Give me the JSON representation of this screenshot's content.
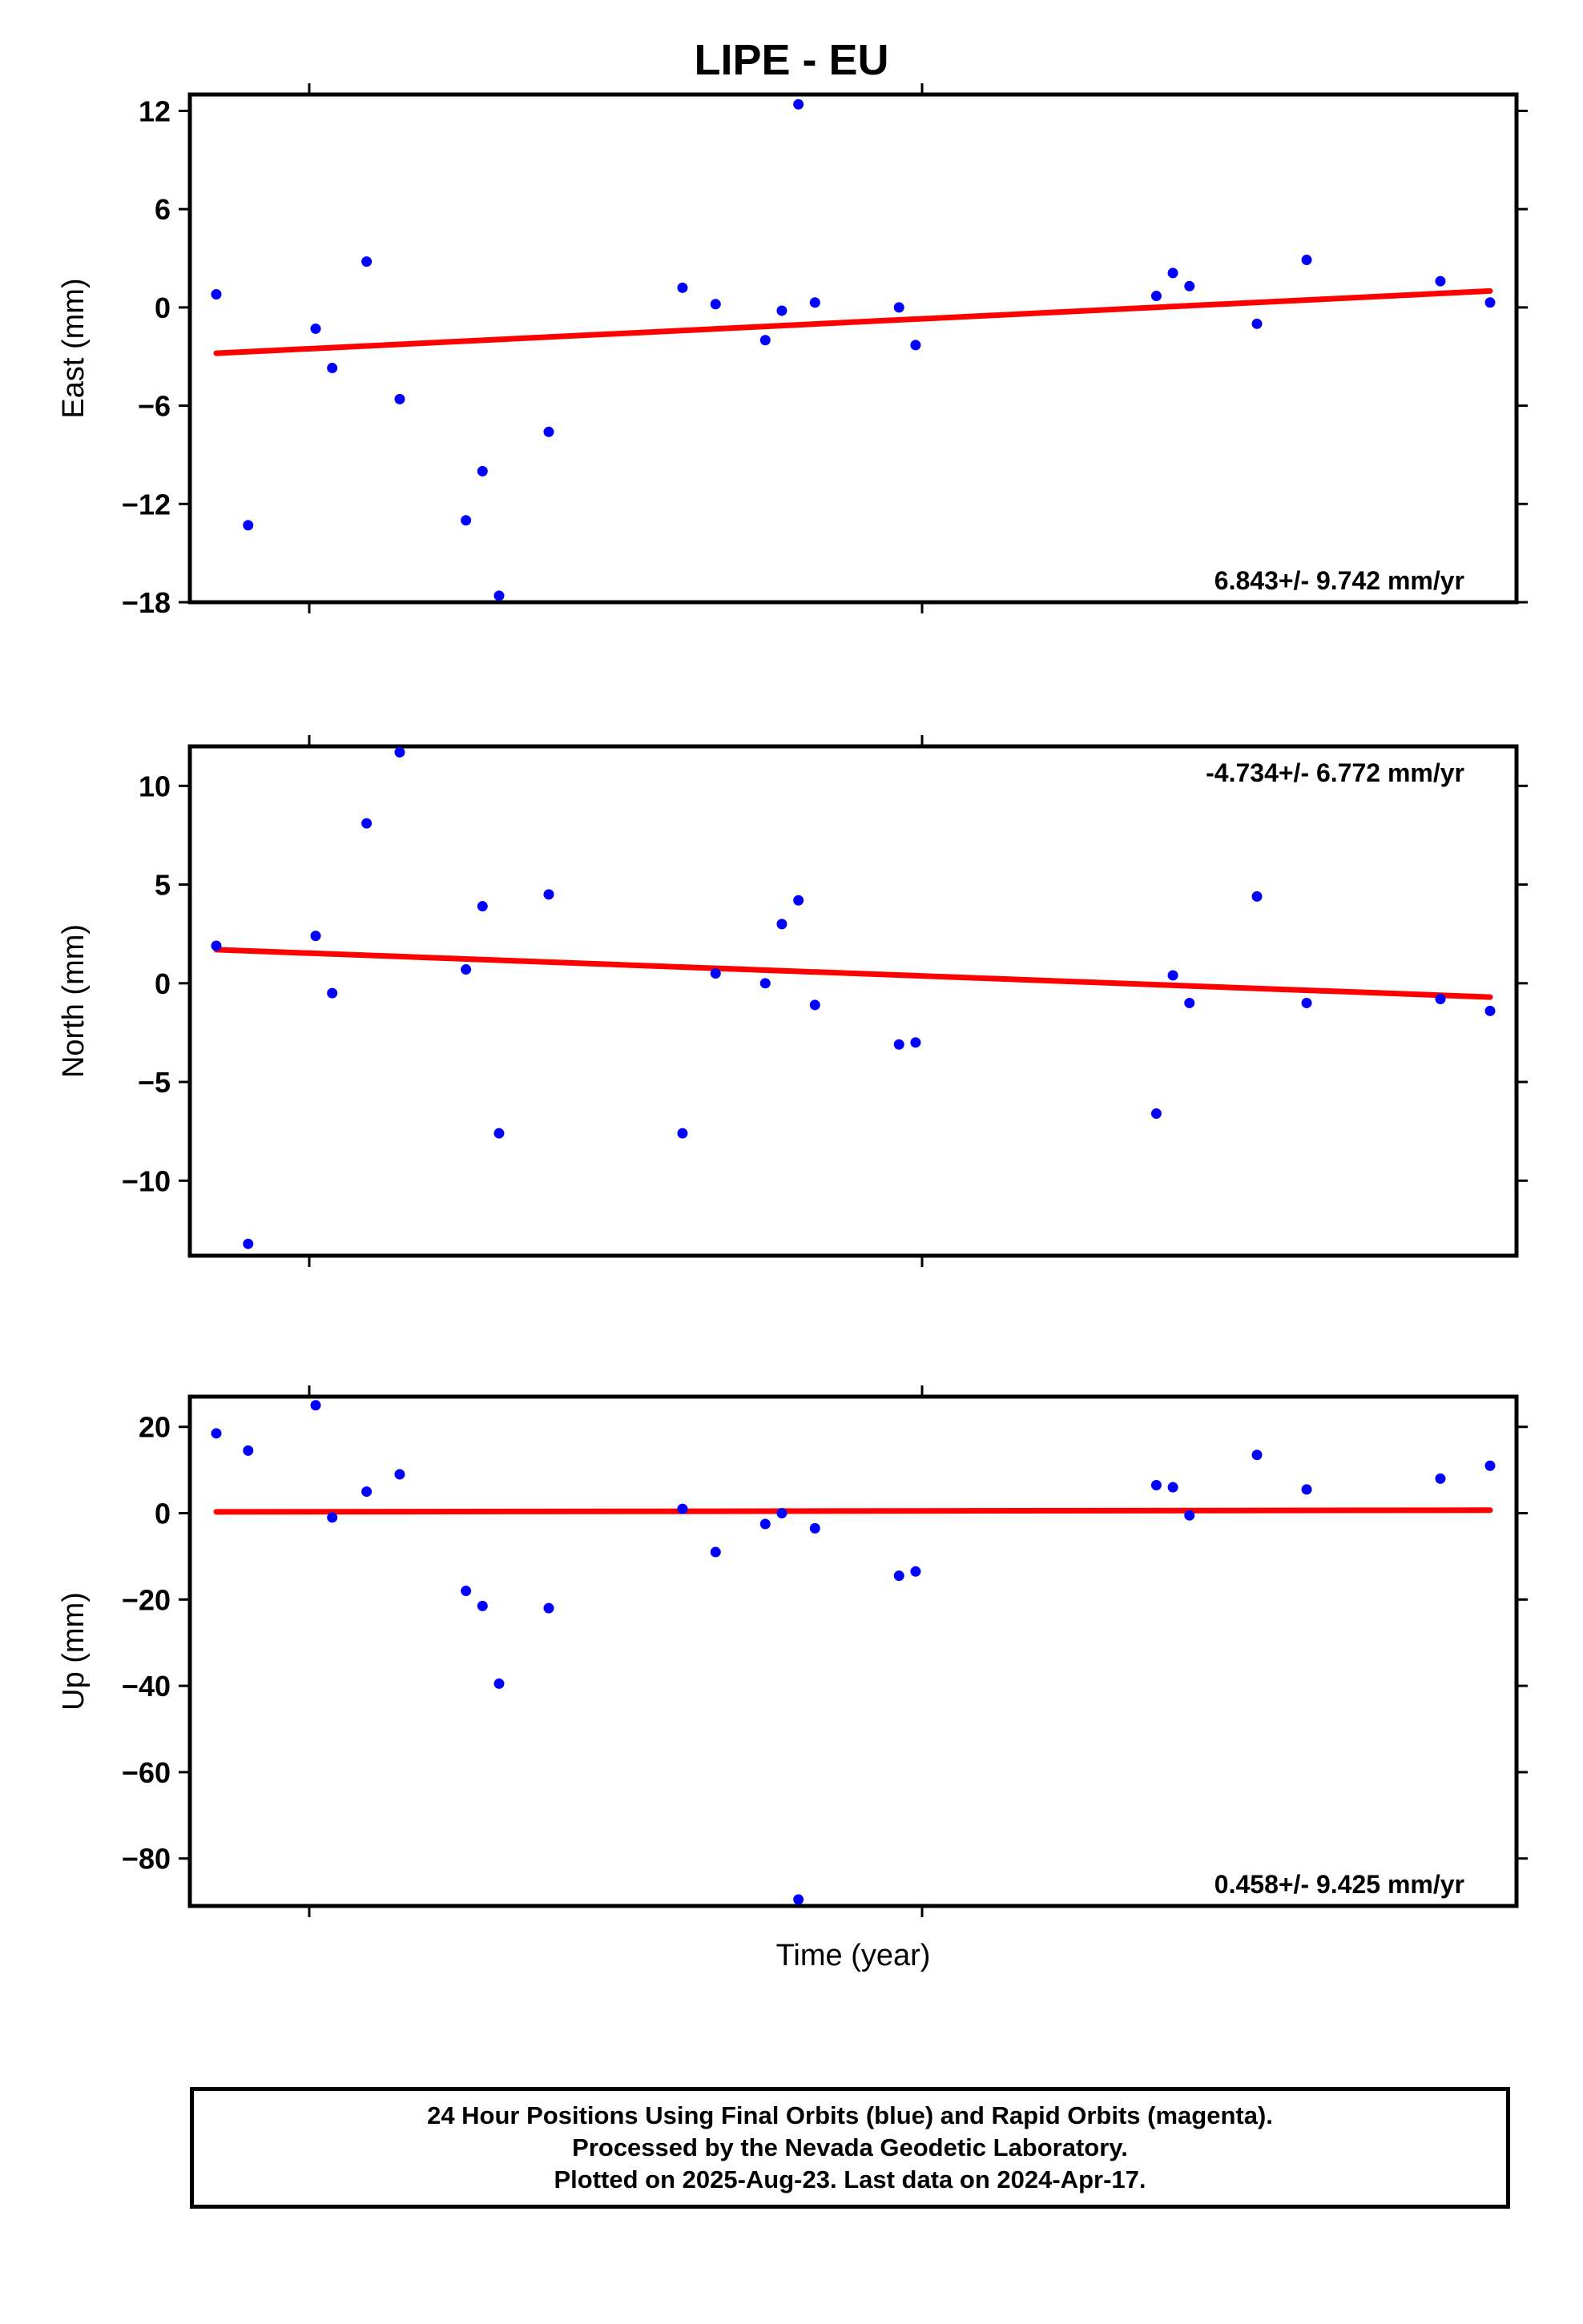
{
  "title": "LIPE - EU",
  "xlabel": "Time (year)",
  "colors": {
    "points": "#0000ff",
    "trend": "#ff0000",
    "frame": "#000000"
  },
  "footer": {
    "line1": "24 Hour Positions Using Final Orbits (blue) and Rapid Orbits (magenta).",
    "line2": "Processed by the Nevada Geodetic Laboratory.",
    "line3": "Plotted on 2025-Aug-23. Last data on 2024-Apr-17."
  },
  "chart_data": [
    {
      "type": "scatter",
      "name": "east",
      "ylabel": "East (mm)",
      "ylim": [
        -18,
        13
      ],
      "yticks": [
        12,
        6,
        0,
        -6,
        -12,
        -18
      ],
      "ytick_labels": [
        "12",
        "6",
        "0",
        "−6",
        "−12",
        "−18"
      ],
      "rate_text": "6.843+/- 9.742 mm/yr",
      "rate_position": "bottom-right",
      "x": [
        0.0,
        0.025,
        0.078,
        0.091,
        0.118,
        0.144,
        0.196,
        0.209,
        0.222,
        0.261,
        0.366,
        0.392,
        0.431,
        0.444,
        0.457,
        0.47,
        0.536,
        0.549,
        0.738,
        0.751,
        0.764,
        0.817,
        0.856,
        0.961,
        1.0
      ],
      "y": [
        0.8,
        -13.3,
        -1.3,
        -3.7,
        2.8,
        -5.6,
        -13.0,
        -10.0,
        -17.6,
        -7.6,
        1.2,
        0.2,
        -2.0,
        -0.2,
        12.4,
        0.3,
        0.0,
        -2.3,
        0.7,
        2.1,
        1.3,
        -1.0,
        2.9,
        1.6,
        0.3
      ],
      "trend": {
        "x": [
          0.0,
          1.0
        ],
        "y": [
          -2.8,
          1.0
        ]
      }
    },
    {
      "type": "scatter",
      "name": "north",
      "ylabel": "North (mm)",
      "ylim": [
        -13.8,
        12
      ],
      "yticks": [
        10,
        5,
        0,
        -5,
        -10
      ],
      "ytick_labels": [
        "10",
        "5",
        "0",
        "−5",
        "−10"
      ],
      "rate_text": "-4.734+/- 6.772 mm/yr",
      "rate_position": "top-right",
      "x": [
        0.0,
        0.025,
        0.078,
        0.091,
        0.118,
        0.144,
        0.196,
        0.209,
        0.222,
        0.261,
        0.366,
        0.392,
        0.431,
        0.444,
        0.457,
        0.47,
        0.536,
        0.549,
        0.738,
        0.751,
        0.764,
        0.817,
        0.856,
        0.961,
        1.0
      ],
      "y": [
        1.9,
        -13.2,
        2.4,
        -0.5,
        8.1,
        11.7,
        0.7,
        3.9,
        -7.6,
        4.5,
        -7.6,
        0.5,
        0.0,
        3.0,
        4.2,
        -1.1,
        -3.1,
        -3.0,
        -6.6,
        0.4,
        -1.0,
        4.4,
        -1.0,
        -0.8,
        -1.4
      ],
      "trend": {
        "x": [
          0.0,
          1.0
        ],
        "y": [
          1.7,
          -0.7
        ]
      }
    },
    {
      "type": "scatter",
      "name": "up",
      "ylabel": "Up (mm)",
      "ylim": [
        -91,
        27
      ],
      "yticks": [
        20,
        0,
        -20,
        -40,
        -60,
        -80
      ],
      "ytick_labels": [
        "20",
        "0",
        "−20",
        "−40",
        "−60",
        "−80"
      ],
      "rate_text": "0.458+/- 9.425 mm/yr",
      "rate_position": "bottom-right",
      "x": [
        0.0,
        0.025,
        0.078,
        0.091,
        0.118,
        0.144,
        0.196,
        0.209,
        0.222,
        0.261,
        0.366,
        0.392,
        0.431,
        0.444,
        0.457,
        0.47,
        0.536,
        0.549,
        0.738,
        0.751,
        0.764,
        0.817,
        0.856,
        0.961,
        1.0
      ],
      "y": [
        18.5,
        14.5,
        25.0,
        -1.0,
        5.0,
        9.0,
        -18.0,
        -21.5,
        -39.5,
        -22.0,
        1.0,
        -9.0,
        -2.5,
        0.0,
        -89.5,
        -3.5,
        -14.5,
        -13.5,
        6.5,
        6.0,
        -0.5,
        13.5,
        5.5,
        8.0,
        11.0
      ],
      "trend": {
        "x": [
          0.0,
          1.0
        ],
        "y": [
          0.3,
          0.7
        ]
      }
    }
  ]
}
